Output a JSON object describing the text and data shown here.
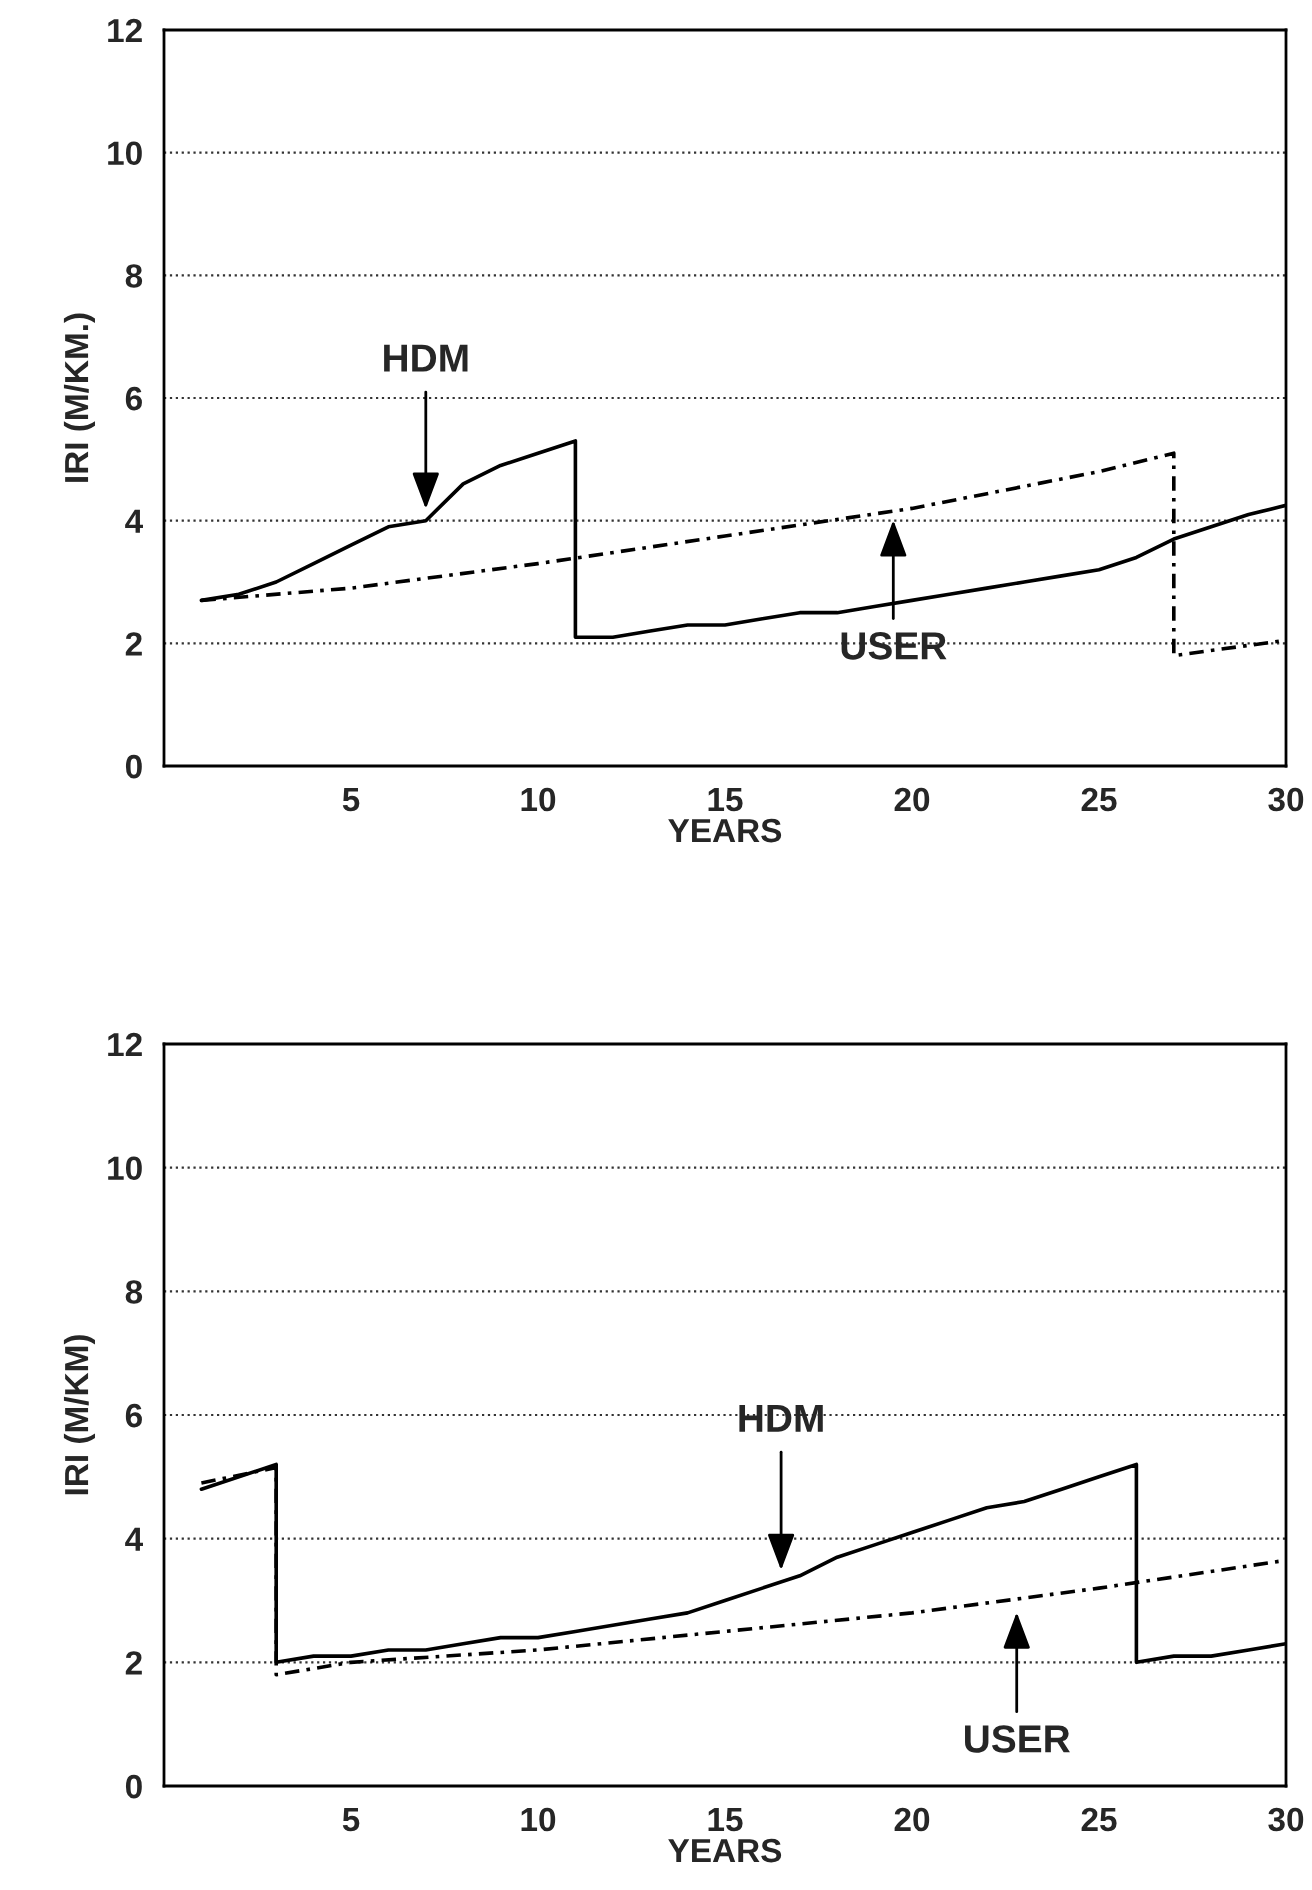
{
  "chart_data": [
    {
      "type": "line",
      "xlabel": "YEARS",
      "ylabel": "IRI (M/KM.)",
      "xlim": [
        0,
        30
      ],
      "ylim": [
        0,
        12
      ],
      "xticks": [
        5,
        10,
        15,
        20,
        25,
        30
      ],
      "yticks": [
        0,
        2,
        4,
        6,
        8,
        10,
        12
      ],
      "grid": "y",
      "marker": "none",
      "series": [
        {
          "color": "#000000",
          "line_style": "solid",
          "x": [
            1,
            2,
            3,
            4,
            5,
            6,
            7,
            8,
            9,
            10,
            11,
            11,
            12,
            13,
            14,
            15,
            16,
            17,
            18,
            19,
            20,
            21,
            22,
            23,
            24,
            25,
            26,
            27,
            28,
            29,
            30
          ],
          "values": [
            2.7,
            2.8,
            3.0,
            3.3,
            3.6,
            3.9,
            4.0,
            4.6,
            4.9,
            5.1,
            5.3,
            2.1,
            2.1,
            2.2,
            2.3,
            2.3,
            2.4,
            2.5,
            2.5,
            2.6,
            2.7,
            2.8,
            2.9,
            3.0,
            3.1,
            3.2,
            3.4,
            3.7,
            3.9,
            4.1,
            4.25
          ]
        },
        {
          "color": "#000000",
          "line_style": "dashed",
          "x": [
            1,
            5,
            10,
            15,
            20,
            25,
            27,
            27,
            30
          ],
          "values": [
            2.7,
            2.9,
            3.3,
            3.75,
            4.2,
            4.8,
            5.1,
            1.8,
            2.05
          ]
        }
      ],
      "annotations": [
        {
          "text": "HDM",
          "x": 7,
          "y": 4.1
        },
        {
          "text": "USER",
          "x": 19.5,
          "y": 4.1
        }
      ]
    },
    {
      "type": "line",
      "xlabel": "YEARS",
      "ylabel": "IRI (M/KM)",
      "xlim": [
        0,
        30
      ],
      "ylim": [
        0,
        12
      ],
      "xticks": [
        5,
        10,
        15,
        20,
        25,
        30
      ],
      "yticks": [
        0,
        2,
        4,
        6,
        8,
        10,
        12
      ],
      "grid": "y",
      "marker": "none",
      "series": [
        {
          "color": "#000000",
          "line_style": "solid",
          "x": [
            1,
            3,
            3,
            4,
            5,
            6,
            7,
            8,
            9,
            10,
            11,
            12,
            13,
            14,
            15,
            16,
            17,
            18,
            19,
            20,
            21,
            22,
            23,
            24,
            25,
            26,
            26,
            27,
            28,
            29,
            30
          ],
          "values": [
            4.8,
            5.2,
            2.0,
            2.1,
            2.1,
            2.2,
            2.2,
            2.3,
            2.4,
            2.4,
            2.5,
            2.6,
            2.7,
            2.8,
            3.0,
            3.2,
            3.4,
            3.7,
            3.9,
            4.1,
            4.3,
            4.5,
            4.6,
            4.8,
            5.0,
            5.2,
            2.0,
            2.1,
            2.1,
            2.2,
            2.3
          ]
        },
        {
          "color": "#000000",
          "line_style": "dashed",
          "x": [
            1,
            3,
            3,
            5,
            10,
            15,
            20,
            25,
            30
          ],
          "values": [
            4.9,
            5.15,
            1.8,
            2.0,
            2.2,
            2.5,
            2.8,
            3.2,
            3.65
          ]
        }
      ],
      "annotations": [
        {
          "text": "HDM",
          "x": 16.5,
          "y": 3.4
        },
        {
          "text": "USER",
          "x": 22.8,
          "y": 2.9
        }
      ]
    }
  ]
}
